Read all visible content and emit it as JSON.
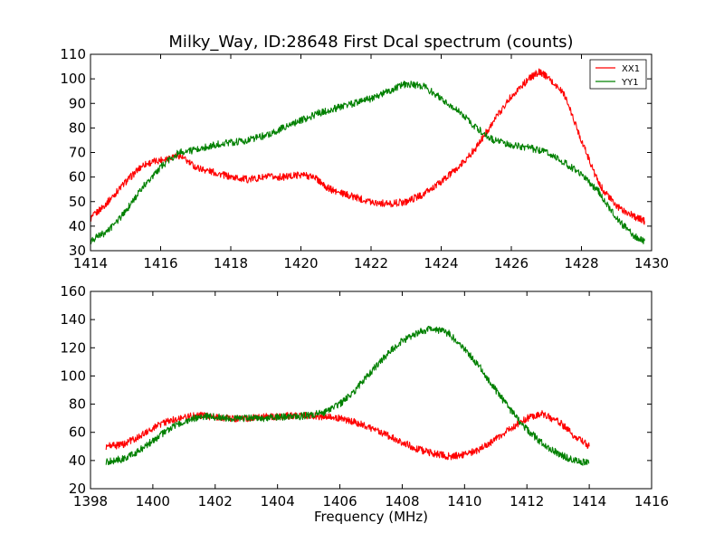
{
  "chart_data": [
    {
      "type": "line",
      "title": "Milky_Way, ID:28648 First Dcal spectrum (counts)",
      "xlabel": "",
      "ylabel": "",
      "xlim": [
        1414,
        1430
      ],
      "ylim": [
        30,
        110
      ],
      "xticks": [
        1414,
        1416,
        1418,
        1420,
        1422,
        1424,
        1426,
        1428,
        1430
      ],
      "yticks": [
        30,
        40,
        50,
        60,
        70,
        80,
        90,
        100,
        110
      ],
      "grid": false,
      "legend": {
        "placement": "top-right",
        "entries": [
          "XX1",
          "YY1"
        ]
      },
      "series": [
        {
          "name": "XX1",
          "color": "#ff0000",
          "x": [
            1414.0,
            1414.5,
            1415.0,
            1415.5,
            1416.0,
            1416.5,
            1417.0,
            1417.5,
            1418.0,
            1418.5,
            1419.0,
            1419.5,
            1420.0,
            1420.4,
            1420.7,
            1421.0,
            1421.5,
            1422.0,
            1422.5,
            1423.0,
            1423.5,
            1424.0,
            1424.5,
            1425.0,
            1425.5,
            1426.0,
            1426.5,
            1426.8,
            1427.0,
            1427.5,
            1428.0,
            1428.5,
            1429.0,
            1429.5,
            1429.8
          ],
          "y": [
            43,
            50,
            58,
            65,
            67,
            69,
            64,
            62,
            60,
            59,
            60,
            60,
            61,
            60,
            56,
            54,
            52,
            50,
            49,
            50,
            53,
            58,
            64,
            72,
            83,
            93,
            100,
            103,
            101,
            94,
            75,
            57,
            48,
            44,
            42
          ]
        },
        {
          "name": "YY1",
          "color": "#008000",
          "x": [
            1414.0,
            1414.5,
            1415.0,
            1415.5,
            1416.0,
            1416.5,
            1417.0,
            1417.5,
            1418.0,
            1418.5,
            1419.0,
            1419.5,
            1420.0,
            1420.5,
            1421.0,
            1421.5,
            1422.0,
            1422.5,
            1423.0,
            1423.5,
            1424.0,
            1424.5,
            1425.0,
            1425.5,
            1426.0,
            1426.5,
            1427.0,
            1427.5,
            1428.0,
            1428.5,
            1429.0,
            1429.5,
            1429.8
          ],
          "y": [
            34,
            38,
            46,
            56,
            64,
            70,
            71,
            73,
            74,
            75,
            77,
            80,
            83,
            86,
            88,
            90,
            92,
            95,
            98,
            97,
            92,
            87,
            80,
            75,
            73,
            72,
            70,
            66,
            61,
            54,
            43,
            36,
            34
          ]
        }
      ]
    },
    {
      "type": "line",
      "title": "",
      "xlabel": "Frequency (MHz)",
      "ylabel": "",
      "xlim": [
        1398,
        1416
      ],
      "ylim": [
        20,
        160
      ],
      "xticks": [
        1398,
        1400,
        1402,
        1404,
        1406,
        1408,
        1410,
        1412,
        1414,
        1416
      ],
      "yticks": [
        20,
        40,
        60,
        80,
        100,
        120,
        140,
        160
      ],
      "grid": false,
      "series": [
        {
          "color": "#ff0000",
          "x": [
            1398.5,
            1399.0,
            1399.5,
            1400.0,
            1400.5,
            1401.0,
            1401.5,
            1402.0,
            1402.5,
            1403.0,
            1403.5,
            1404.0,
            1404.5,
            1405.0,
            1405.5,
            1406.0,
            1406.5,
            1407.0,
            1407.5,
            1408.0,
            1408.5,
            1409.0,
            1409.5,
            1410.0,
            1410.5,
            1411.0,
            1411.5,
            1412.0,
            1412.5,
            1413.0,
            1413.5,
            1414.0
          ],
          "y": [
            50,
            51,
            56,
            63,
            68,
            71,
            72,
            71,
            70,
            70,
            71,
            71,
            72,
            72,
            71,
            70,
            67,
            63,
            58,
            53,
            48,
            45,
            43,
            44,
            48,
            55,
            63,
            70,
            73,
            68,
            58,
            50
          ]
        },
        {
          "color": "#008000",
          "x": [
            1398.5,
            1399.0,
            1399.5,
            1400.0,
            1400.5,
            1401.0,
            1401.5,
            1402.0,
            1402.5,
            1403.0,
            1403.5,
            1404.0,
            1404.5,
            1405.0,
            1405.5,
            1406.0,
            1406.5,
            1407.0,
            1407.5,
            1408.0,
            1408.5,
            1409.0,
            1409.5,
            1410.0,
            1410.5,
            1411.0,
            1411.5,
            1412.0,
            1412.5,
            1413.0,
            1413.5,
            1414.0
          ],
          "y": [
            39,
            41,
            46,
            54,
            62,
            68,
            71,
            71,
            70,
            70,
            70,
            71,
            71,
            72,
            74,
            80,
            90,
            103,
            115,
            125,
            131,
            134,
            130,
            119,
            106,
            90,
            75,
            62,
            52,
            45,
            40,
            38
          ]
        }
      ]
    }
  ]
}
